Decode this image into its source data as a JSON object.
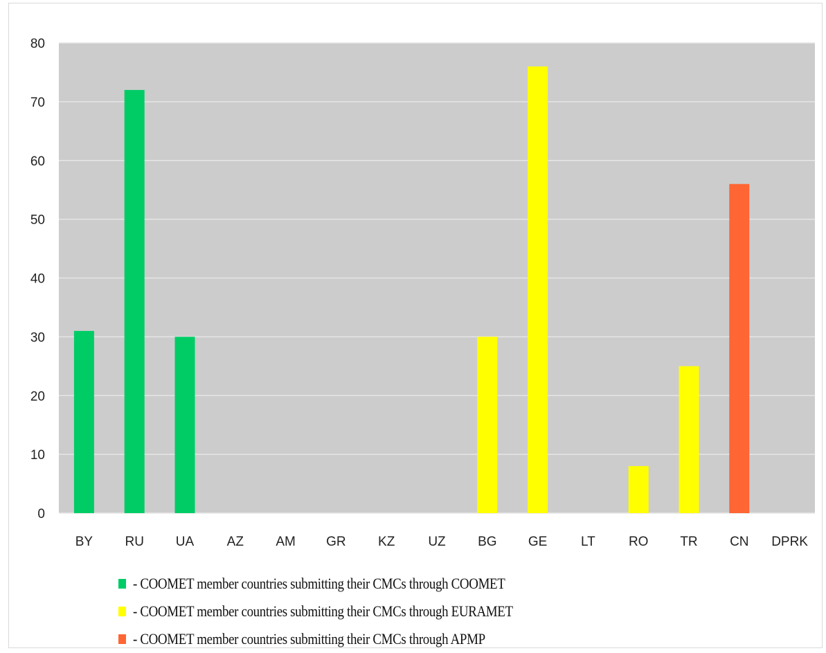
{
  "chart_data": {
    "type": "bar",
    "categories": [
      "BY",
      "RU",
      "UA",
      "AZ",
      "AM",
      "GR",
      "KZ",
      "UZ",
      "BG",
      "GE",
      "LT",
      "RO",
      "TR",
      "CN",
      "DPRK"
    ],
    "values": [
      31,
      72,
      30,
      0,
      0,
      0,
      0,
      0,
      30,
      76,
      0,
      8,
      25,
      56,
      0
    ],
    "groups": [
      "coomet",
      "coomet",
      "coomet",
      "coomet",
      "coomet",
      "coomet",
      "coomet",
      "coomet",
      "euramet",
      "euramet",
      "euramet",
      "euramet",
      "euramet",
      "apmp",
      "apmp"
    ],
    "ylim": [
      0,
      80
    ],
    "yticks": [
      0,
      10,
      20,
      30,
      40,
      50,
      60,
      70,
      80
    ],
    "grid": true,
    "plot_background": "#cccccc",
    "legend": [
      {
        "key": "coomet",
        "color": "#00cc66",
        "text": "- COOMET member countries submitting their CMCs through COOMET"
      },
      {
        "key": "euramet",
        "color": "#ffff00",
        "text": "- COOMET member countries submitting their CMCs through EURAMET"
      },
      {
        "key": "apmp",
        "color": "#ff6633",
        "text": "- COOMET member countries submitting their CMCs through APMP"
      }
    ]
  }
}
